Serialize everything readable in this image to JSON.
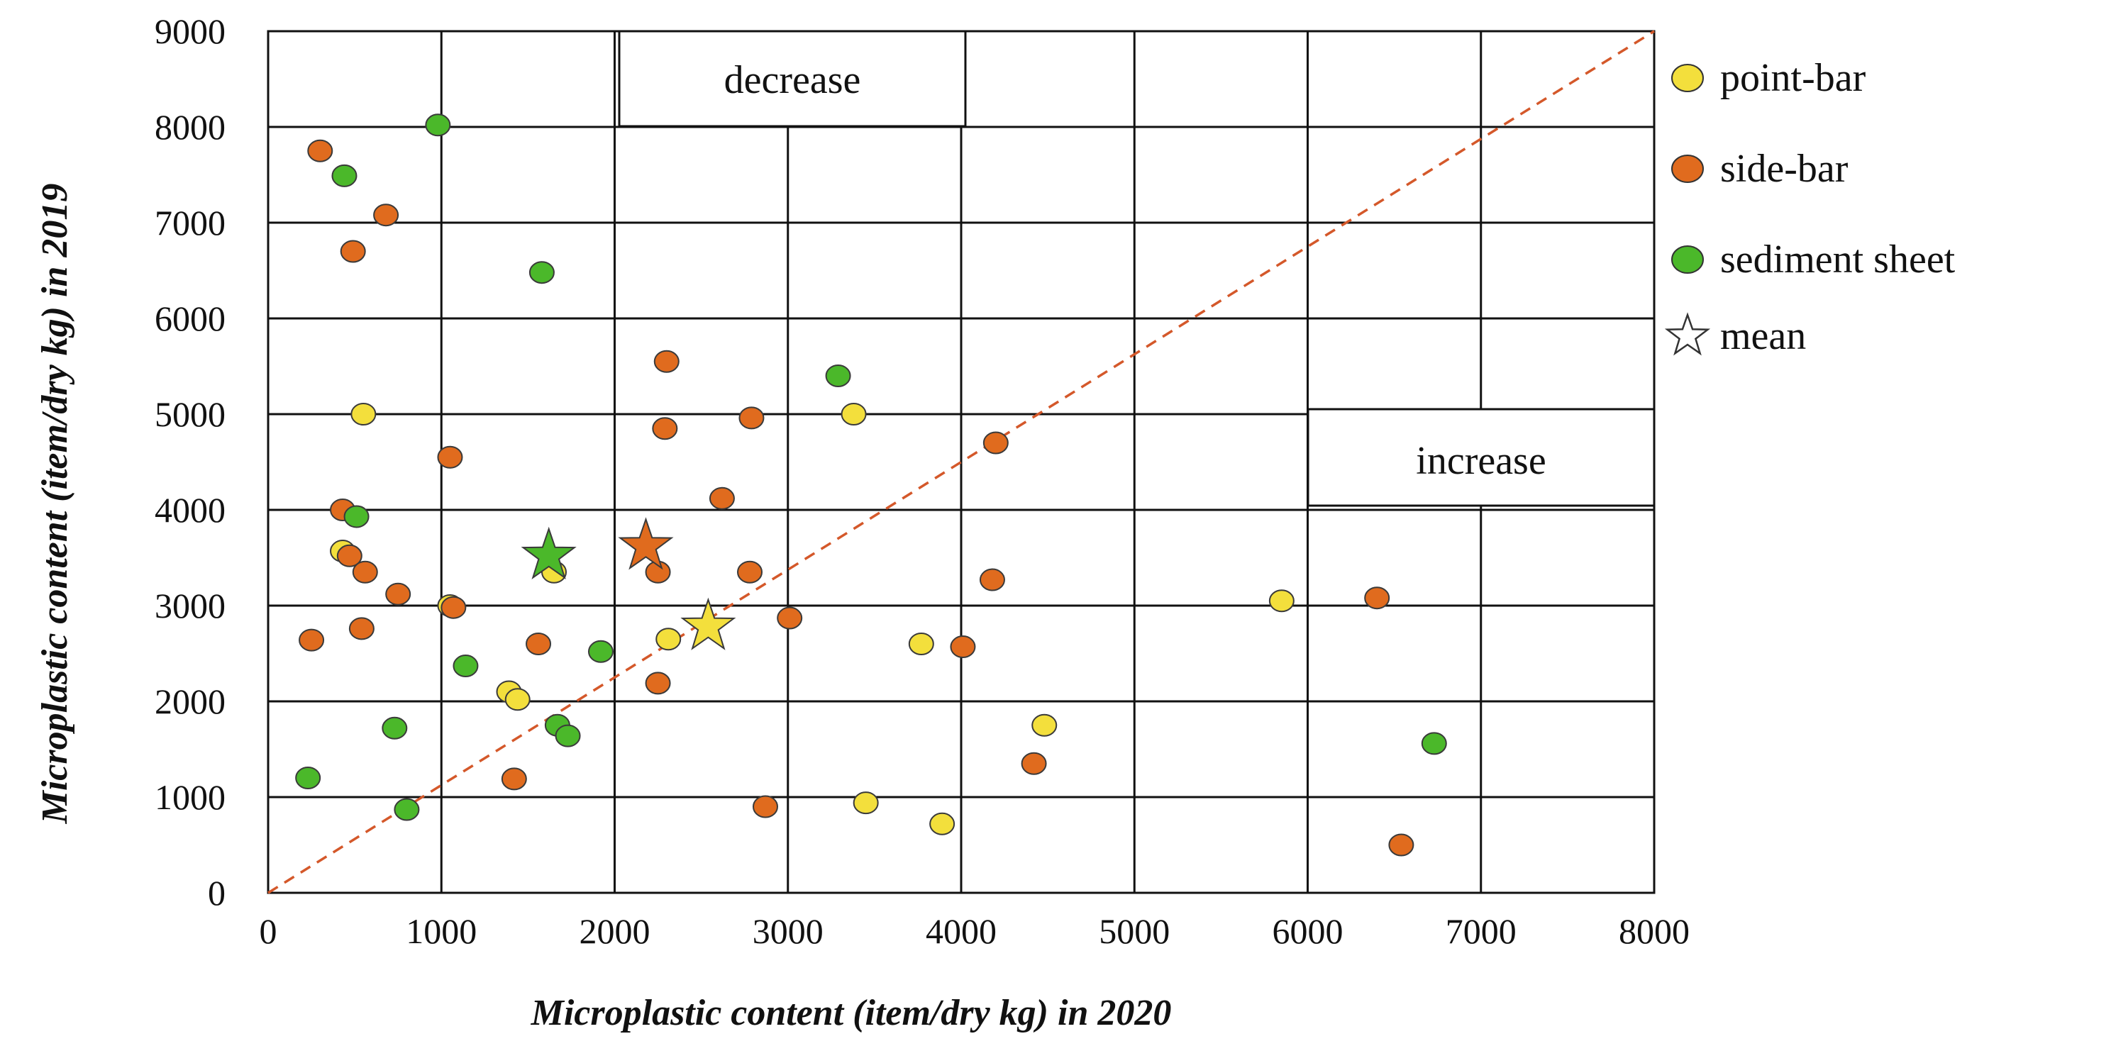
{
  "chart_data": {
    "type": "scatter",
    "xlabel": "Microplastic content (item/dry kg) in 2020",
    "ylabel": "Microplastic content (item/dry kg) in 2019",
    "xlim": [
      0,
      8000
    ],
    "ylim": [
      0,
      9000
    ],
    "x_ticks": [
      "0",
      "1000",
      "2000",
      "3000",
      "4000",
      "5000",
      "6000",
      "7000",
      "8000"
    ],
    "y_ticks": [
      "0",
      "1000",
      "2000",
      "3000",
      "4000",
      "5000",
      "6000",
      "7000",
      "8000",
      "9000"
    ],
    "grid": true,
    "legend_position": "right",
    "reference_line": {
      "style": "dashed",
      "from": [
        0,
        0
      ],
      "to": [
        8000,
        9000
      ],
      "color": "#d4582a"
    },
    "annotations": [
      {
        "text": "decrease",
        "region": "top-center"
      },
      {
        "text": "increase",
        "region": "right-middle"
      }
    ],
    "series": [
      {
        "name": "point-bar",
        "color": "#f3df3c",
        "marker": "circle",
        "points": [
          [
            550,
            5000
          ],
          [
            430,
            3570
          ],
          [
            1650,
            3350
          ],
          [
            1050,
            3000
          ],
          [
            1390,
            2100
          ],
          [
            1440,
            2020
          ],
          [
            2310,
            2650
          ],
          [
            3380,
            5000
          ],
          [
            3770,
            2600
          ],
          [
            3450,
            940
          ],
          [
            3890,
            720
          ],
          [
            4480,
            1750
          ],
          [
            5850,
            3050
          ]
        ]
      },
      {
        "name": "side-bar",
        "color": "#e06b1e",
        "marker": "circle",
        "points": [
          [
            300,
            7750
          ],
          [
            680,
            7080
          ],
          [
            490,
            6700
          ],
          [
            1050,
            4550
          ],
          [
            430,
            4000
          ],
          [
            470,
            3520
          ],
          [
            560,
            3350
          ],
          [
            750,
            3120
          ],
          [
            1070,
            2980
          ],
          [
            250,
            2640
          ],
          [
            540,
            2760
          ],
          [
            1560,
            2600
          ],
          [
            2300,
            5550
          ],
          [
            2290,
            4850
          ],
          [
            2790,
            4960
          ],
          [
            2620,
            4120
          ],
          [
            2250,
            3350
          ],
          [
            2780,
            3350
          ],
          [
            2250,
            2190
          ],
          [
            1420,
            1190
          ],
          [
            3010,
            2870
          ],
          [
            2870,
            900
          ],
          [
            4010,
            2570
          ],
          [
            4200,
            4700
          ],
          [
            4180,
            3270
          ],
          [
            4420,
            1350
          ],
          [
            6400,
            3080
          ],
          [
            6540,
            500
          ]
        ]
      },
      {
        "name": "sediment sheet",
        "color": "#4bb82a",
        "marker": "circle",
        "points": [
          [
            980,
            8020
          ],
          [
            440,
            7490
          ],
          [
            1580,
            6480
          ],
          [
            510,
            3930
          ],
          [
            1140,
            2370
          ],
          [
            1920,
            2520
          ],
          [
            730,
            1720
          ],
          [
            1670,
            1750
          ],
          [
            1730,
            1640
          ],
          [
            230,
            1200
          ],
          [
            800,
            870
          ],
          [
            3290,
            5400
          ],
          [
            6730,
            1560
          ]
        ]
      },
      {
        "name": "mean",
        "marker": "star",
        "points": [
          {
            "x": 1620,
            "y": 3520,
            "color": "#4bb82a"
          },
          {
            "x": 2180,
            "y": 3620,
            "color": "#e06b1e"
          },
          {
            "x": 2540,
            "y": 2780,
            "color": "#f3df3c"
          }
        ]
      }
    ],
    "legend": [
      {
        "label": "point-bar",
        "marker": "circle",
        "color": "#f3df3c"
      },
      {
        "label": "side-bar",
        "marker": "circle",
        "color": "#e06b1e"
      },
      {
        "label": "sediment sheet",
        "marker": "circle",
        "color": "#4bb82a"
      },
      {
        "label": "mean",
        "marker": "star",
        "color": "#ffffff"
      }
    ]
  }
}
